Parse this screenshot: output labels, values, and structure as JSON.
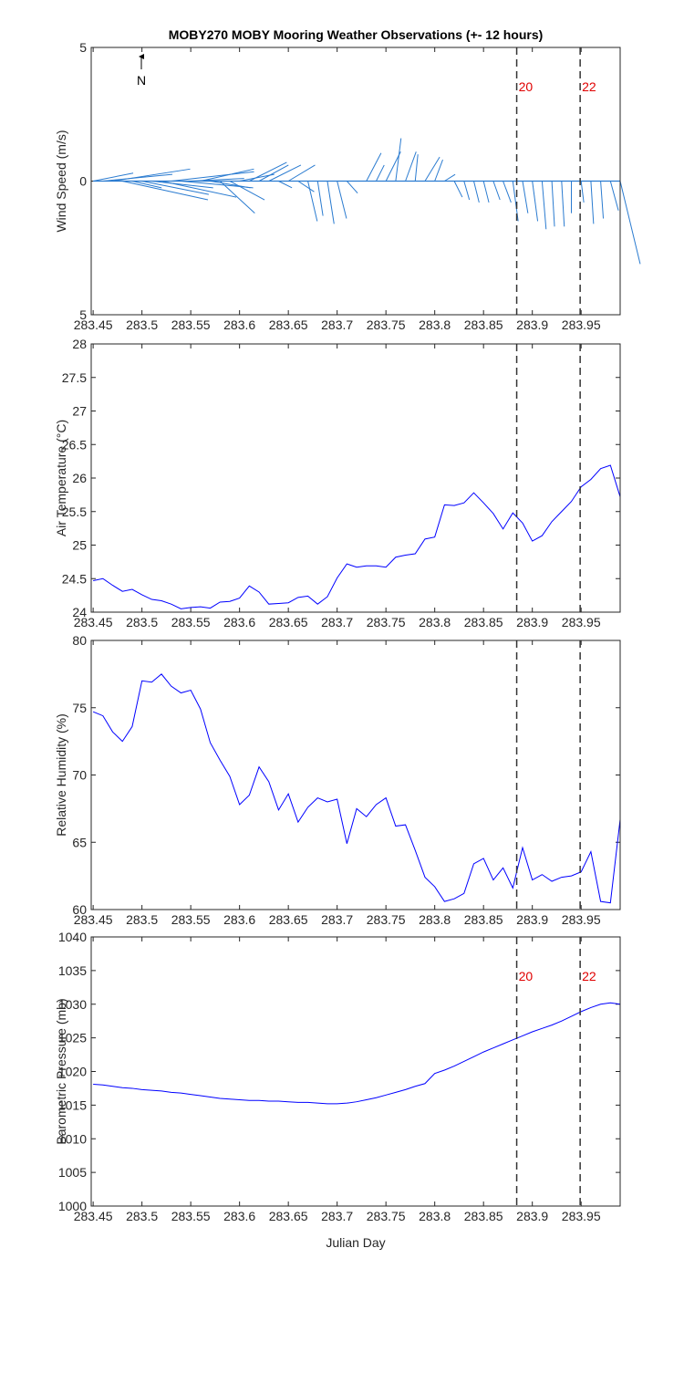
{
  "chart_data": [
    {
      "type": "quiver",
      "title": "MOBY270 MOBY Mooring Weather Observations (+- 12 hours)",
      "ylabel": "Wind Speed (m/s)",
      "annotation": "N",
      "color": "#2a7bd0",
      "x": [
        283.45,
        283.46,
        283.47,
        283.48,
        283.49,
        283.5,
        283.51,
        283.52,
        283.53,
        283.54,
        283.55,
        283.56,
        283.57,
        283.58,
        283.59,
        283.6,
        283.61,
        283.62,
        283.63,
        283.64,
        283.65,
        283.66,
        283.67,
        283.68,
        283.69,
        283.7,
        283.71,
        283.72,
        283.73,
        283.74,
        283.75,
        283.76,
        283.77,
        283.78,
        283.79,
        283.8,
        283.81,
        283.82,
        283.83,
        283.84,
        283.85,
        283.86,
        283.87,
        283.88,
        283.89,
        283.9,
        283.91,
        283.92,
        283.93,
        283.94,
        283.95,
        283.96,
        283.97,
        283.98,
        283.99
      ],
      "u": [
        1.5,
        2.6,
        2.9,
        3.2,
        1.1,
        2.5,
        2.3,
        2.8,
        3.1,
        2.7,
        2.0,
        2.0,
        1.5,
        1.3,
        1.3,
        1.3,
        1.4,
        1.1,
        1.2,
        0.5,
        1.0,
        0.6,
        0.35,
        0.2,
        0.25,
        0.35,
        0.4,
        0,
        0.55,
        0.3,
        0.55,
        0.2,
        0.4,
        0.1,
        0.55,
        0.3,
        0.4,
        0.3,
        0.2,
        0.2,
        0.2,
        0.25,
        0.3,
        0.2,
        0.2,
        0.2,
        0.15,
        0.1,
        0.1,
        0,
        0.1,
        0.1,
        0.1,
        0.3,
        0.75
      ],
      "v": [
        0.3,
        0.25,
        0.45,
        -0.7,
        -0.25,
        -0.5,
        -0.25,
        -0.6,
        0.35,
        -0.25,
        0.1,
        0.45,
        -0.25,
        -1.2,
        -0.7,
        0.25,
        0.7,
        0.6,
        0.6,
        -0.25,
        0.6,
        -0.4,
        -1.5,
        -1.3,
        -1.6,
        -1.4,
        -0.45,
        0,
        1.05,
        0.6,
        1.1,
        1.6,
        1.1,
        1.0,
        0.9,
        0.8,
        0.25,
        -0.6,
        -0.7,
        -0.8,
        -0.8,
        -0.7,
        -0.8,
        -1.5,
        -1.2,
        -1.5,
        -1.8,
        -1.7,
        -1.7,
        -1.2,
        -0.8,
        -1.6,
        -1.4,
        -1.1,
        -3.1
      ],
      "xlim": [
        283.448,
        283.99
      ],
      "xticks": [
        283.45,
        283.5,
        283.55,
        283.6,
        283.65,
        283.7,
        283.75,
        283.8,
        283.85,
        283.9,
        283.95
      ],
      "ylim": [
        -5,
        5
      ],
      "yticks": [
        {
          "value": -5,
          "label": "5"
        },
        0,
        5
      ],
      "vlines": [
        283.884,
        283.949
      ],
      "vline_labels": [
        "20",
        "22"
      ]
    },
    {
      "type": "line",
      "ylabel": "Air Temperature (°C)",
      "color": "#0000ff",
      "x": [
        283.45,
        283.46,
        283.47,
        283.48,
        283.49,
        283.5,
        283.51,
        283.52,
        283.53,
        283.54,
        283.55,
        283.56,
        283.57,
        283.58,
        283.59,
        283.6,
        283.61,
        283.62,
        283.63,
        283.64,
        283.65,
        283.66,
        283.67,
        283.68,
        283.69,
        283.7,
        283.71,
        283.72,
        283.73,
        283.74,
        283.75,
        283.76,
        283.77,
        283.78,
        283.79,
        283.8,
        283.81,
        283.82,
        283.83,
        283.84,
        283.85,
        283.86,
        283.87,
        283.88,
        283.89,
        283.9,
        283.91,
        283.92,
        283.93,
        283.94,
        283.95,
        283.96,
        283.97,
        283.98,
        283.99
      ],
      "values": [
        24.47,
        24.5,
        24.4,
        24.31,
        24.34,
        24.26,
        24.19,
        24.17,
        24.12,
        24.05,
        24.07,
        24.08,
        24.06,
        24.15,
        24.16,
        24.21,
        24.39,
        24.3,
        24.12,
        24.13,
        24.14,
        24.22,
        24.24,
        24.12,
        24.23,
        24.51,
        24.72,
        24.67,
        24.69,
        24.69,
        24.67,
        24.82,
        24.85,
        24.87,
        25.09,
        25.12,
        25.6,
        25.59,
        25.63,
        25.78,
        25.63,
        25.47,
        25.24,
        25.48,
        25.33,
        25.06,
        25.14,
        25.35,
        25.5,
        25.65,
        25.87,
        25.98,
        26.14,
        26.19,
        25.72
      ],
      "xlim": [
        283.448,
        283.99
      ],
      "xticks": [
        283.45,
        283.5,
        283.55,
        283.6,
        283.65,
        283.7,
        283.75,
        283.8,
        283.85,
        283.9,
        283.95
      ],
      "ylim": [
        24,
        28
      ],
      "yticks": [
        24,
        24.5,
        25,
        25.5,
        26,
        26.5,
        27,
        27.5,
        28
      ],
      "vlines": [
        283.884,
        283.949
      ]
    },
    {
      "type": "line",
      "ylabel": "Relative Humidity (%)",
      "color": "#0000ff",
      "x": [
        283.45,
        283.46,
        283.47,
        283.48,
        283.49,
        283.5,
        283.51,
        283.52,
        283.53,
        283.54,
        283.55,
        283.56,
        283.57,
        283.58,
        283.59,
        283.6,
        283.61,
        283.62,
        283.63,
        283.64,
        283.65,
        283.66,
        283.67,
        283.68,
        283.69,
        283.7,
        283.71,
        283.72,
        283.73,
        283.74,
        283.75,
        283.76,
        283.77,
        283.78,
        283.79,
        283.8,
        283.81,
        283.82,
        283.83,
        283.84,
        283.85,
        283.86,
        283.87,
        283.88,
        283.89,
        283.9,
        283.91,
        283.92,
        283.93,
        283.94,
        283.95,
        283.96,
        283.97,
        283.98,
        283.99
      ],
      "values": [
        74.7,
        74.4,
        73.2,
        72.5,
        73.6,
        77.0,
        76.9,
        77.5,
        76.6,
        76.1,
        76.3,
        74.9,
        72.4,
        71.1,
        69.9,
        67.8,
        68.5,
        70.6,
        69.5,
        67.4,
        68.6,
        66.5,
        67.6,
        68.3,
        68.0,
        68.2,
        64.9,
        67.5,
        66.9,
        67.8,
        68.3,
        66.2,
        66.3,
        64.4,
        62.4,
        61.7,
        60.6,
        60.8,
        61.2,
        63.4,
        63.8,
        62.2,
        63.1,
        61.6,
        64.6,
        62.2,
        62.6,
        62.1,
        62.4,
        62.5,
        62.8,
        64.3,
        60.6,
        60.5,
        66.7
      ],
      "xlim": [
        283.448,
        283.99
      ],
      "xticks": [
        283.45,
        283.5,
        283.55,
        283.6,
        283.65,
        283.7,
        283.75,
        283.8,
        283.85,
        283.9,
        283.95
      ],
      "ylim": [
        60,
        80
      ],
      "yticks": [
        60,
        65,
        70,
        75,
        80
      ],
      "vlines": [
        283.884,
        283.949
      ]
    },
    {
      "type": "line",
      "ylabel": "Barometric Pressure (mb)",
      "xlabel": "Julian Day",
      "color": "#0000ff",
      "x": [
        283.45,
        283.46,
        283.47,
        283.48,
        283.49,
        283.5,
        283.51,
        283.52,
        283.53,
        283.54,
        283.55,
        283.56,
        283.57,
        283.58,
        283.59,
        283.6,
        283.61,
        283.62,
        283.63,
        283.64,
        283.65,
        283.66,
        283.67,
        283.68,
        283.69,
        283.7,
        283.71,
        283.72,
        283.73,
        283.74,
        283.75,
        283.76,
        283.77,
        283.78,
        283.79,
        283.8,
        283.81,
        283.82,
        283.83,
        283.84,
        283.85,
        283.86,
        283.87,
        283.88,
        283.89,
        283.9,
        283.91,
        283.92,
        283.93,
        283.94,
        283.95,
        283.96,
        283.97,
        283.98,
        283.99
      ],
      "values": [
        1018.1,
        1018.0,
        1017.8,
        1017.6,
        1017.5,
        1017.3,
        1017.2,
        1017.1,
        1016.9,
        1016.8,
        1016.6,
        1016.4,
        1016.2,
        1016.0,
        1015.9,
        1015.8,
        1015.7,
        1015.7,
        1015.6,
        1015.6,
        1015.5,
        1015.4,
        1015.4,
        1015.3,
        1015.2,
        1015.2,
        1015.3,
        1015.5,
        1015.8,
        1016.1,
        1016.5,
        1016.9,
        1017.3,
        1017.8,
        1018.2,
        1019.7,
        1020.2,
        1020.8,
        1021.5,
        1022.2,
        1022.9,
        1023.5,
        1024.1,
        1024.7,
        1025.3,
        1025.9,
        1026.4,
        1026.9,
        1027.5,
        1028.2,
        1028.9,
        1029.5,
        1030.0,
        1030.2,
        1030.0
      ],
      "xlim": [
        283.448,
        283.99
      ],
      "xticks": [
        283.45,
        283.5,
        283.55,
        283.6,
        283.65,
        283.7,
        283.75,
        283.8,
        283.85,
        283.9,
        283.95
      ],
      "ylim": [
        1000,
        1040
      ],
      "yticks": [
        1000,
        1005,
        1010,
        1015,
        1020,
        1025,
        1030,
        1035,
        1040
      ],
      "vlines": [
        283.884,
        283.949
      ],
      "vline_labels": [
        "20",
        "22"
      ]
    }
  ]
}
